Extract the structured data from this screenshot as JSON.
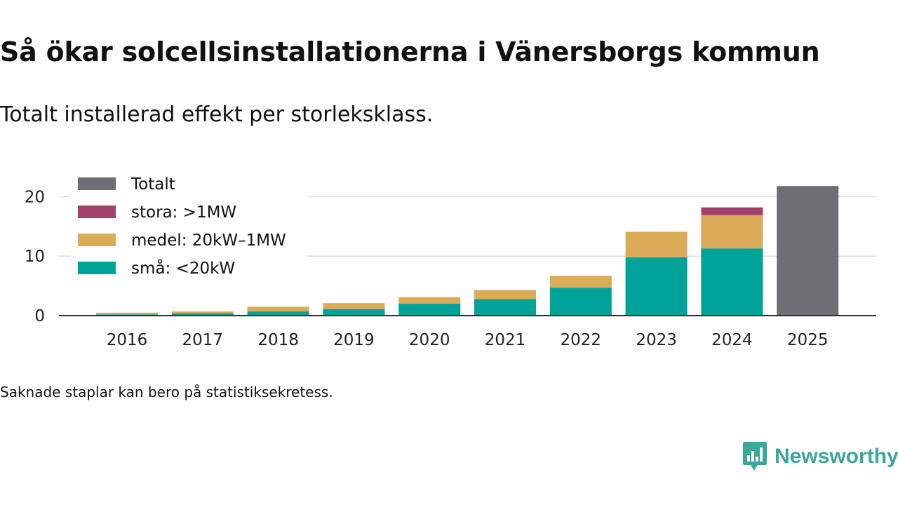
{
  "title": "Så ökar solcellsinstallationerna i Vänersborgs kommun",
  "subtitle": "Totalt installerad effekt per storleksklass.",
  "footnote": "Saknade staplar kan bero på statistiksekretess.",
  "brand": "Newsworthy",
  "colors": {
    "totalt": "#6f6e74",
    "stora": "#a4416a",
    "medel": "#dbab58",
    "sma": "#00a398",
    "grid": "#dddddd",
    "axis": "#333333"
  },
  "chart_data": {
    "type": "bar",
    "stacked": true,
    "categories": [
      "2016",
      "2017",
      "2018",
      "2019",
      "2020",
      "2021",
      "2022",
      "2023",
      "2024",
      "2025"
    ],
    "series": [
      {
        "key": "sma",
        "name": "små: <20kW",
        "values": [
          0.2,
          0.4,
          0.7,
          1.1,
          2.0,
          2.8,
          4.7,
          9.8,
          11.3,
          0
        ]
      },
      {
        "key": "medel",
        "name": "medel: 20kW–1MW",
        "values": [
          0.3,
          0.3,
          0.8,
          1.0,
          1.1,
          1.5,
          2.0,
          4.3,
          5.6,
          0
        ]
      },
      {
        "key": "stora",
        "name": "stora: >1MW",
        "values": [
          0,
          0,
          0,
          0,
          0,
          0,
          0,
          0,
          1.3,
          0
        ]
      },
      {
        "key": "totalt",
        "name": "Totalt",
        "values": [
          0,
          0,
          0,
          0,
          0,
          0,
          0,
          0,
          0,
          21.8
        ]
      }
    ],
    "legend_order": [
      "totalt",
      "stora",
      "medel",
      "sma"
    ],
    "legend_position": "top-left",
    "yticks": [
      0,
      10,
      20
    ],
    "ylim": [
      0,
      23
    ],
    "xlabel": "",
    "ylabel": "",
    "grid": true
  }
}
